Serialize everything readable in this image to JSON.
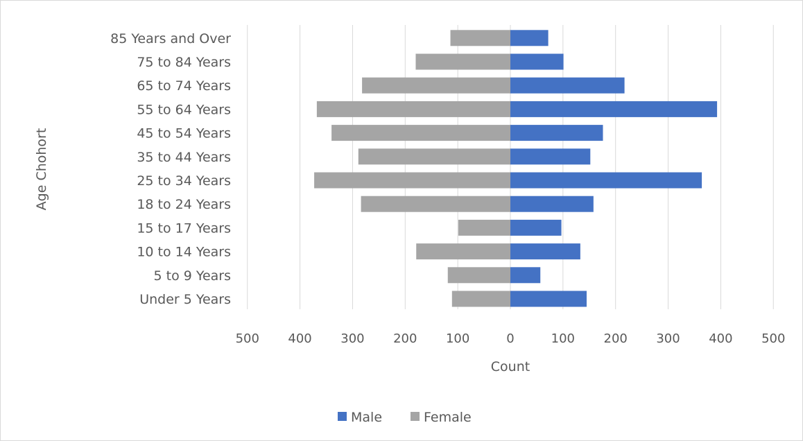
{
  "chart_data": {
    "type": "bar",
    "orientation": "horizontal",
    "subtype": "population-pyramid",
    "title": "",
    "xlabel": "Count",
    "ylabel": "Age Chohort",
    "xlim": [
      -500,
      500
    ],
    "x_tick_values": [
      -500,
      -400,
      -300,
      -200,
      -100,
      0,
      100,
      200,
      300,
      400,
      500
    ],
    "x_tick_labels": [
      "500",
      "400",
      "300",
      "200",
      "100",
      "0",
      "100",
      "200",
      "300",
      "400",
      "500"
    ],
    "grid": true,
    "legend_position": "bottom",
    "categories": [
      "Under 5 Years",
      "5 to 9 Years",
      "10 to 14 Years",
      "15 to 17 Years",
      "18 to 24 Years",
      "25 to 34 Years",
      "35 to 44 Years",
      "45 to 54 Years",
      "55 to 64 Years",
      "65 to 74 Years",
      "75 to 84 Years",
      "85 Years and Over"
    ],
    "series": [
      {
        "name": "Male",
        "color": "#4472c4",
        "values": [
          145,
          57,
          133,
          97,
          158,
          364,
          152,
          176,
          393,
          217,
          101,
          72
        ]
      },
      {
        "name": "Female",
        "color": "#a5a5a5",
        "values": [
          -111,
          -119,
          -179,
          -99,
          -284,
          -373,
          -289,
          -340,
          -368,
          -282,
          -180,
          -114
        ]
      }
    ]
  }
}
